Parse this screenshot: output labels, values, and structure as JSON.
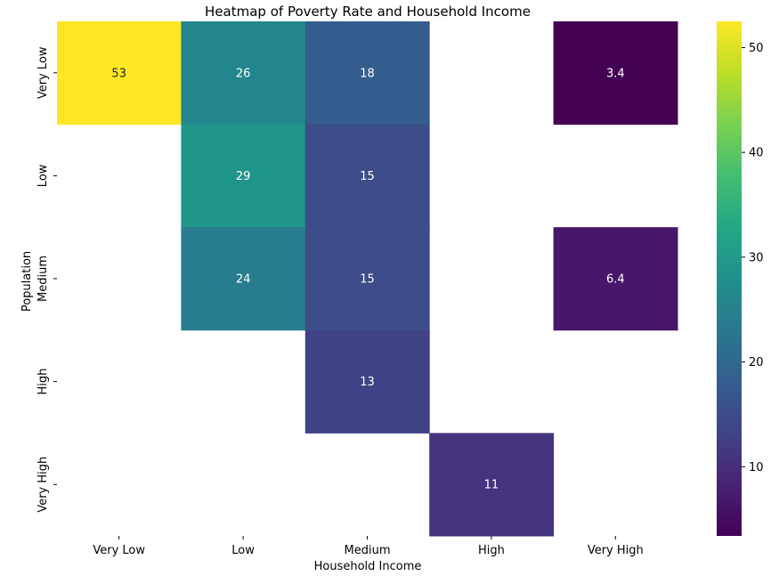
{
  "chart_data": {
    "type": "heatmap",
    "title": "Heatmap of Poverty Rate and Household Income",
    "xlabel": "Household Income",
    "ylabel": "Population",
    "x_categories": [
      "Very Low",
      "Low",
      "Medium",
      "High",
      "Very High"
    ],
    "y_categories": [
      "Very Low",
      "Low",
      "Medium",
      "High",
      "Very High"
    ],
    "values": [
      [
        52.5,
        26,
        18,
        null,
        3.4
      ],
      [
        null,
        29,
        15,
        null,
        null
      ],
      [
        null,
        24,
        15,
        null,
        6.4
      ],
      [
        null,
        null,
        13,
        null,
        null
      ],
      [
        null,
        null,
        null,
        11,
        null
      ]
    ],
    "annotations": [
      [
        "53",
        "26",
        "18",
        null,
        "3.4"
      ],
      [
        null,
        "29",
        "15",
        null,
        null
      ],
      [
        null,
        "24",
        "15",
        null,
        "6.4"
      ],
      [
        null,
        null,
        "13",
        null,
        null
      ],
      [
        null,
        null,
        null,
        "11",
        null
      ]
    ],
    "colormap": "viridis",
    "vmin": 3.4,
    "vmax": 52.5,
    "colorbar_ticks": [
      10,
      20,
      30,
      40,
      50
    ]
  }
}
